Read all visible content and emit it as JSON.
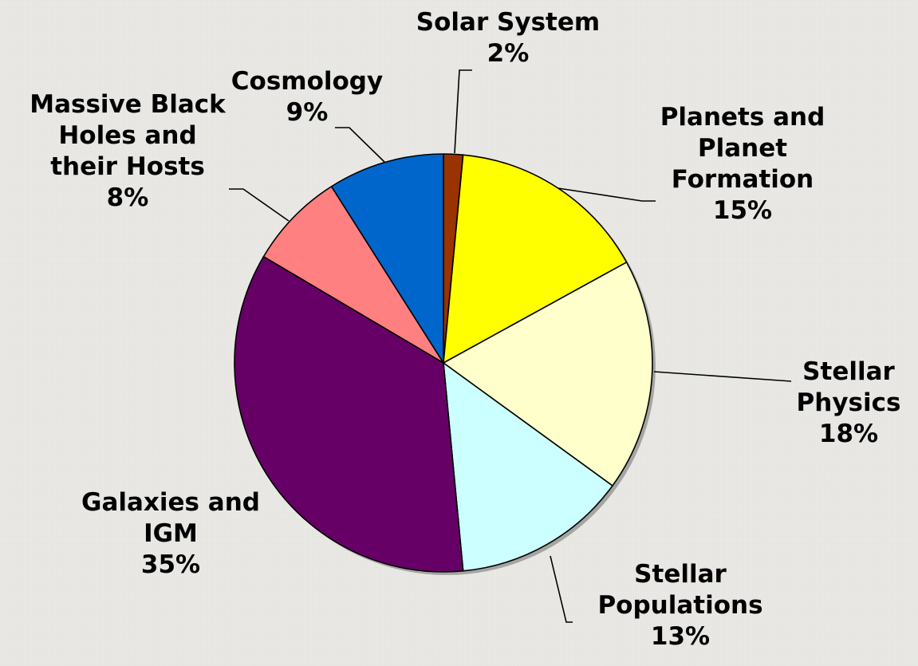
{
  "chart_data": {
    "type": "pie",
    "title": "",
    "slices": [
      {
        "label_lines": [
          "Solar System"
        ],
        "percent_label": "2%",
        "value": 1.5,
        "color": "#993300"
      },
      {
        "label_lines": [
          "Planets and",
          "Planet",
          "Formation"
        ],
        "percent_label": "15%",
        "value": 15.5,
        "color": "#ffff00"
      },
      {
        "label_lines": [
          "Stellar",
          "Physics"
        ],
        "percent_label": "18%",
        "value": 18.0,
        "color": "#ffffcc"
      },
      {
        "label_lines": [
          "Stellar",
          "Populations"
        ],
        "percent_label": "13%",
        "value": 13.5,
        "color": "#ccffff"
      },
      {
        "label_lines": [
          "Galaxies and",
          "IGM"
        ],
        "percent_label": "35%",
        "value": 35.0,
        "color": "#660066"
      },
      {
        "label_lines": [
          "Massive Black",
          "Holes and",
          "their Hosts"
        ],
        "percent_label": "8%",
        "value": 7.5,
        "color": "#ff8080"
      },
      {
        "label_lines": [
          "Cosmology"
        ],
        "percent_label": "9%",
        "value": 9.0,
        "color": "#0066cc"
      }
    ],
    "start_angle_deg": 0,
    "direction": "clockwise",
    "legend": "none"
  }
}
